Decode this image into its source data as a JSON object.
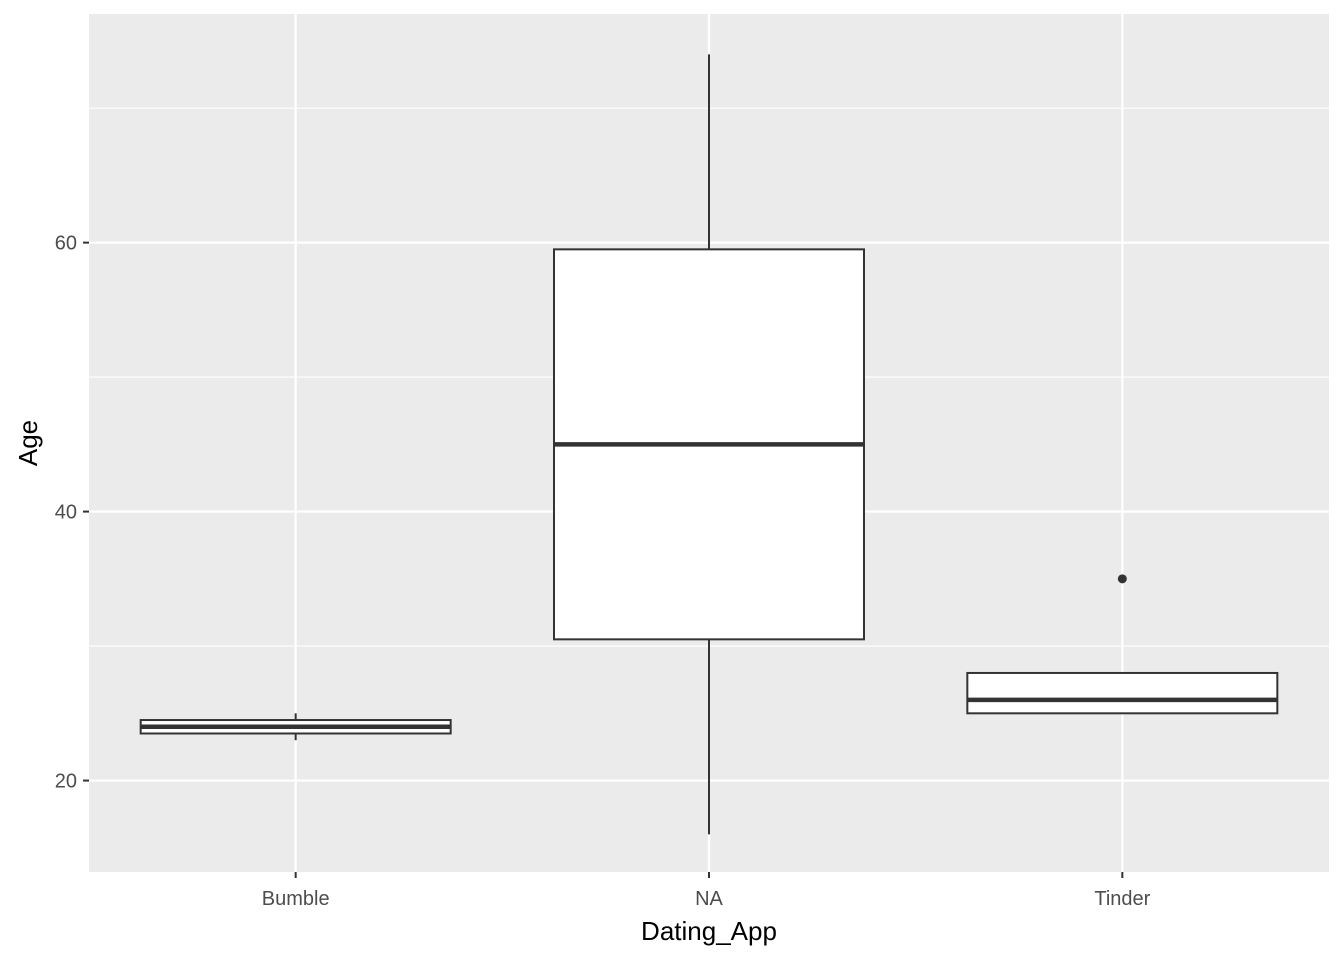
{
  "chart_data": {
    "type": "box",
    "xlabel": "Dating_App",
    "ylabel": "Age",
    "ylim": [
      13.2,
      77
    ],
    "y_major_ticks": [
      20,
      40,
      60
    ],
    "y_minor_ticks": [
      30,
      50,
      70
    ],
    "grid": true,
    "categories": [
      "Bumble",
      "NA",
      "Tinder"
    ],
    "boxes": [
      {
        "category": "Bumble",
        "min": 23,
        "q1": 23.5,
        "median": 24,
        "q3": 24.5,
        "max": 25,
        "outliers": []
      },
      {
        "category": "NA",
        "min": 16,
        "q1": 30.5,
        "median": 45,
        "q3": 59.5,
        "max": 74,
        "outliers": []
      },
      {
        "category": "Tinder",
        "min": 25,
        "q1": 25,
        "median": 26,
        "q3": 28,
        "max": 28,
        "outliers": [
          35
        ]
      }
    ]
  }
}
